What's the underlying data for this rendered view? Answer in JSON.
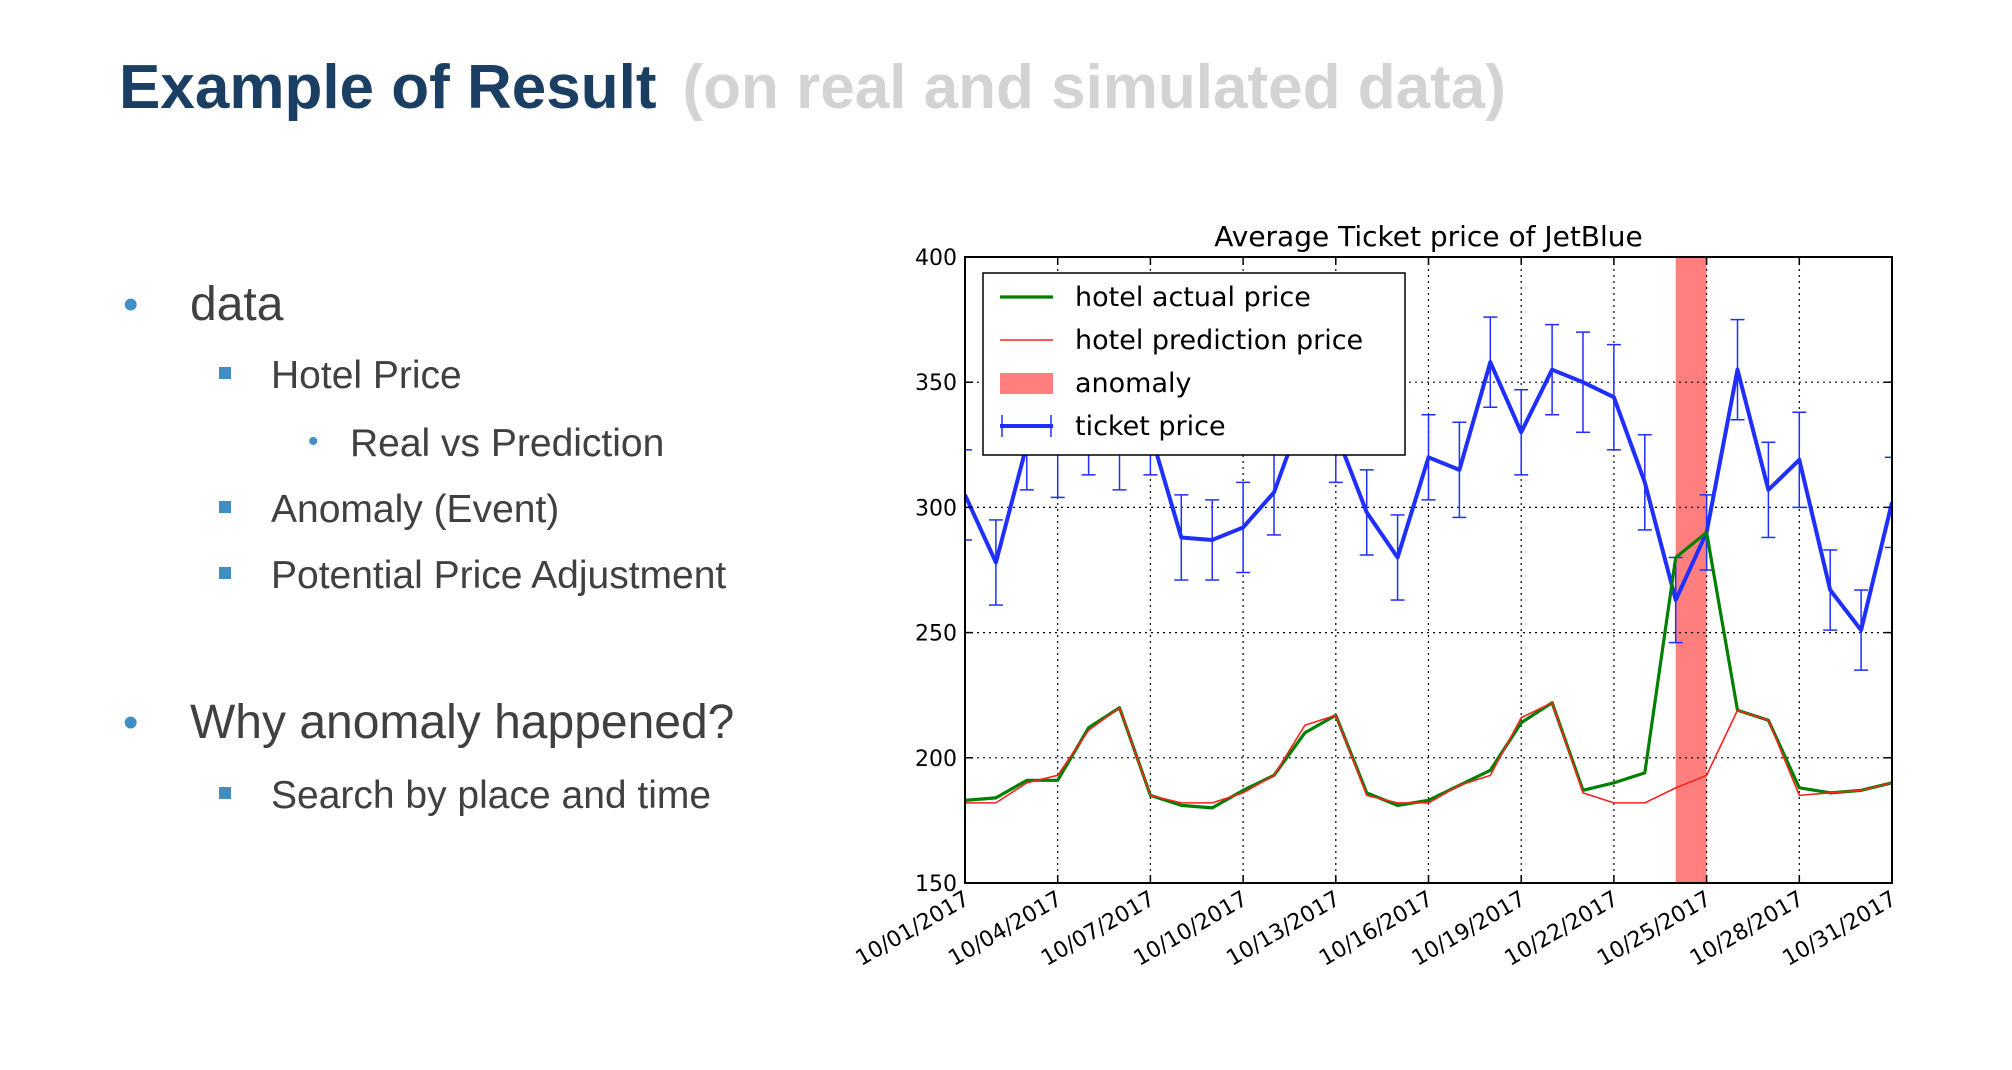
{
  "slide": {
    "title": "Example of Result",
    "subtitle": "(on real and simulated data)",
    "bullets": {
      "data": "data",
      "hotel_price": "Hotel Price",
      "real_vs_prediction": "Real vs Prediction",
      "anomaly_event": "Anomaly (Event)",
      "potential_adjustment": "Potential Price Adjustment",
      "why_anomaly": "Why anomaly happened?",
      "search_place_time": "Search by place and time"
    }
  },
  "chart_data": {
    "type": "line",
    "title": "Average Ticket price of JetBlue",
    "xlabel": "",
    "ylabel": "",
    "ylim": [
      150,
      400
    ],
    "yticks": [
      150,
      200,
      250,
      300,
      350,
      400
    ],
    "x_dates": [
      "10/01/2017",
      "10/02/2017",
      "10/03/2017",
      "10/04/2017",
      "10/05/2017",
      "10/06/2017",
      "10/07/2017",
      "10/08/2017",
      "10/09/2017",
      "10/10/2017",
      "10/11/2017",
      "10/12/2017",
      "10/13/2017",
      "10/14/2017",
      "10/15/2017",
      "10/16/2017",
      "10/17/2017",
      "10/18/2017",
      "10/19/2017",
      "10/20/2017",
      "10/21/2017",
      "10/22/2017",
      "10/23/2017",
      "10/24/2017",
      "10/25/2017",
      "10/26/2017",
      "10/27/2017",
      "10/28/2017",
      "10/29/2017",
      "10/30/2017",
      "10/31/2017"
    ],
    "xtick_labels": [
      "10/01/2017",
      "10/04/2017",
      "10/07/2017",
      "10/10/2017",
      "10/13/2017",
      "10/16/2017",
      "10/19/2017",
      "10/22/2017",
      "10/25/2017",
      "10/28/2017",
      "10/31/2017"
    ],
    "grid": true,
    "legend_position": "top-left",
    "anomaly_range": [
      "10/24/2017",
      "10/25/2017"
    ],
    "series": [
      {
        "name": "hotel actual price",
        "color": "#008000",
        "values": [
          183,
          184,
          191,
          191,
          212,
          220,
          185,
          181,
          180,
          187,
          193,
          210,
          217,
          186,
          181,
          183,
          189,
          195,
          214,
          222,
          187,
          190,
          194,
          280,
          290,
          219,
          215,
          188,
          186,
          187,
          190
        ]
      },
      {
        "name": "hotel prediction price",
        "color": "#ff2020",
        "values": [
          182,
          182,
          190,
          193,
          211,
          220,
          185,
          182,
          182,
          186,
          193,
          213,
          217,
          185,
          182,
          182,
          189,
          193,
          216,
          222,
          186,
          182,
          182,
          188,
          193,
          219,
          215,
          185,
          186,
          187,
          190
        ]
      },
      {
        "name": "ticket price",
        "color": "#1f2fff",
        "values": [
          305,
          278,
          325,
          322,
          330,
          325,
          330,
          288,
          287,
          292,
          306,
          340,
          330,
          298,
          280,
          320,
          315,
          358,
          330,
          355,
          350,
          344,
          310,
          263,
          290,
          355,
          307,
          319,
          267,
          251,
          302
        ],
        "errors": [
          18,
          17,
          18,
          18,
          17,
          18,
          17,
          17,
          16,
          18,
          17,
          17,
          20,
          17,
          17,
          17,
          19,
          18,
          17,
          18,
          20,
          21,
          19,
          17,
          15,
          20,
          19,
          19,
          16,
          16,
          18
        ]
      }
    ],
    "anomaly_label": "anomaly"
  }
}
